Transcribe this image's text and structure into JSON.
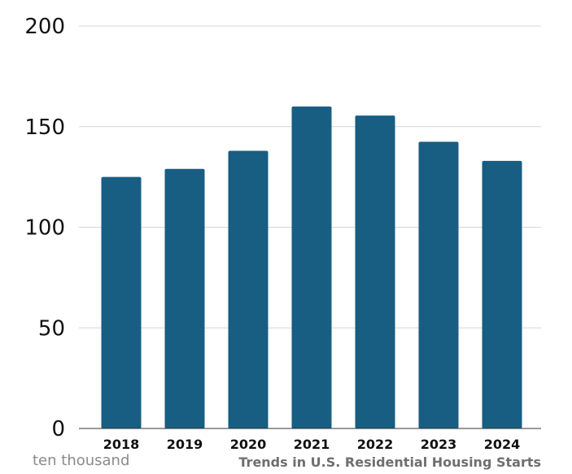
{
  "chart_data": {
    "type": "bar",
    "title": "Trends in U.S. Residential Housing Starts",
    "ylabel": "ten thousand",
    "categories": [
      "2018",
      "2019",
      "2020",
      "2021",
      "2022",
      "2023",
      "2024"
    ],
    "values": [
      125,
      129,
      138,
      160,
      155.5,
      142.5,
      133
    ],
    "ylim": [
      0,
      200
    ],
    "yticks": [
      0,
      50,
      100,
      150,
      200
    ],
    "grid": true,
    "bar_color": "#175e82"
  }
}
